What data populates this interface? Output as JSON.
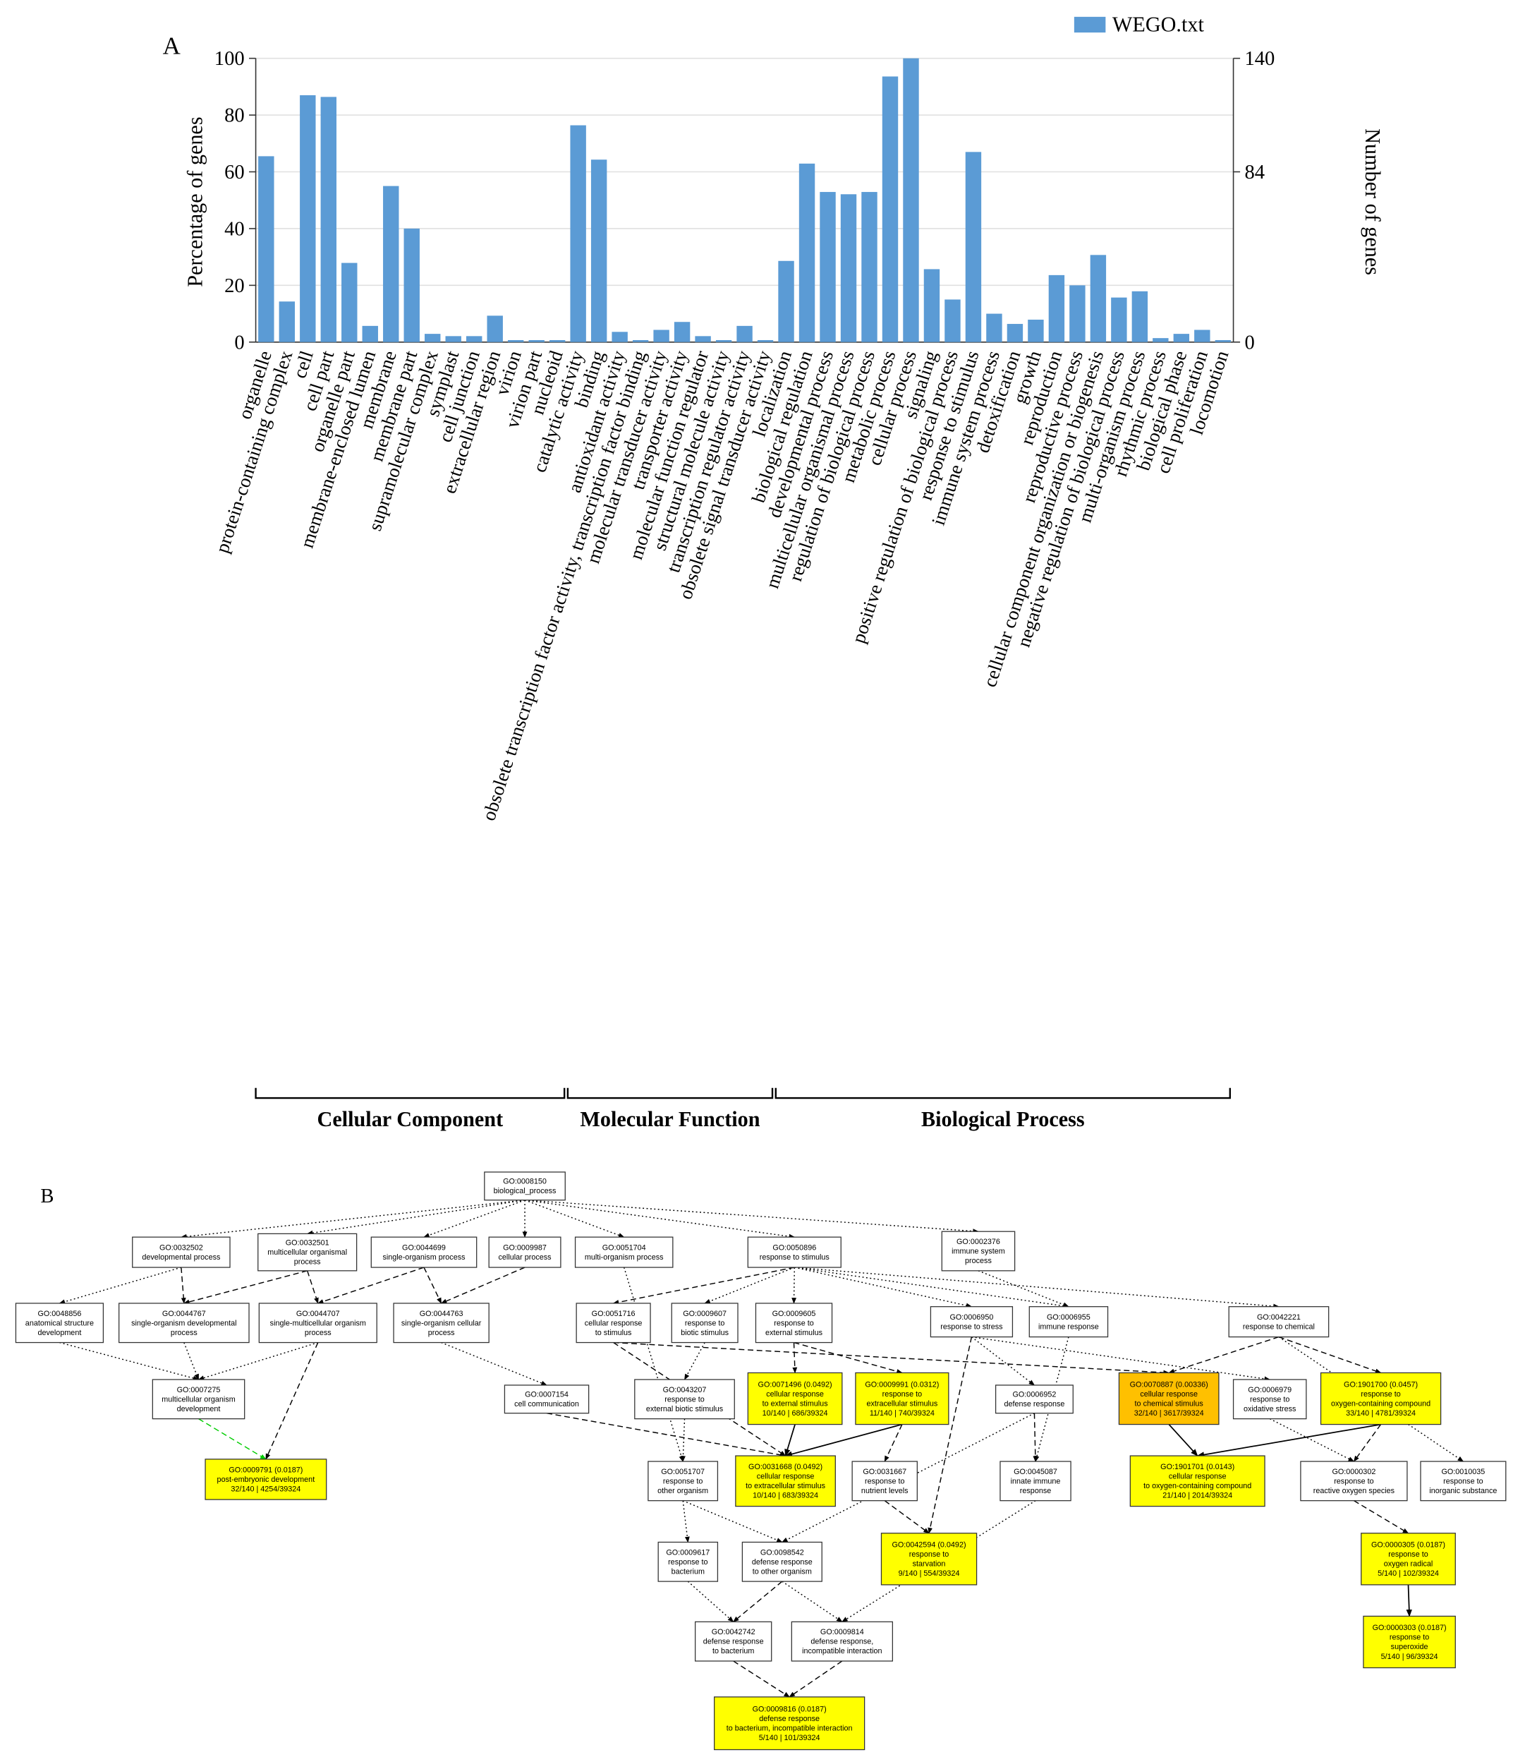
{
  "panel_a_label": "A",
  "panel_b_label": "B",
  "chart_data": {
    "type": "bar",
    "categories": [
      "organelle",
      "protein-containing complex",
      "cell",
      "cell part",
      "organelle part",
      "membrane-enclosed lumen",
      "membrane",
      "membrane part",
      "supramolecular complex",
      "symplast",
      "cell junction",
      "extracellular region",
      "virion",
      "virion part",
      "nucleoid",
      "catalytic activity",
      "binding",
      "antioxidant activity",
      "obsolete transcription factor activity, transcription factor binding",
      "molecular transducer activity",
      "transporter activity",
      "molecular function regulator",
      "structural molecule activity",
      "transcription regulator activity",
      "obsolete signal transducer activity",
      "localization",
      "biological regulation",
      "developmental process",
      "multicellular organismal process",
      "regulation of biological process",
      "metabolic process",
      "cellular process",
      "signaling",
      "positive regulation of biological process",
      "response to stimulus",
      "immune system process",
      "detoxification",
      "growth",
      "reproduction",
      "reproductive process",
      "cellular component organization or biogenesis",
      "negative regulation of biological process",
      "multi-organism process",
      "rhythmic process",
      "biological phase",
      "cell proliferation",
      "locomotion"
    ],
    "series": [
      {
        "name": "WEGO.txt",
        "color": "#5b9bd5",
        "values": [
          65.5,
          14.3,
          87,
          86.4,
          27.9,
          5.7,
          55,
          40,
          2.9,
          2.1,
          2.1,
          9.3,
          0.7,
          0.7,
          0.7,
          76.4,
          64.3,
          3.6,
          0.7,
          4.3,
          7.1,
          2.1,
          0.7,
          5.7,
          0.7,
          28.6,
          62.9,
          52.9,
          52.1,
          52.9,
          93.6,
          100,
          25.7,
          15,
          67,
          10,
          6.4,
          7.9,
          23.6,
          20,
          30.7,
          15.7,
          17.9,
          1.4,
          2.9,
          4.3,
          0.7
        ]
      }
    ],
    "ylabel": "Percentage of genes",
    "y2label": "Number of genes",
    "ylim": [
      0,
      100
    ],
    "yticks": [
      0,
      20,
      40,
      60,
      80,
      100
    ],
    "y2lim": [
      0,
      140
    ],
    "y2ticks": [
      0,
      84,
      140
    ],
    "grid": true,
    "legend": "top-right",
    "groups": [
      "Cellular Component",
      "Molecular Function",
      "Biological Process"
    ]
  },
  "diagram": {
    "nodes": [
      {
        "lines": [
          "GO:0008150",
          "biological_process"
        ],
        "color": "#ffffff"
      },
      {
        "lines": [
          "GO:0032502",
          "developmental process"
        ],
        "color": "#ffffff"
      },
      {
        "lines": [
          "GO:0032501",
          "multicellular organismal",
          "process"
        ],
        "color": "#ffffff"
      },
      {
        "lines": [
          "GO:0044699",
          "single-organism process"
        ],
        "color": "#ffffff"
      },
      {
        "lines": [
          "GO:0009987",
          "cellular process"
        ],
        "color": "#ffffff"
      },
      {
        "lines": [
          "GO:0051704",
          "multi-organism process"
        ],
        "color": "#ffffff"
      },
      {
        "lines": [
          "GO:0050896",
          "response to stimulus"
        ],
        "color": "#ffffff"
      },
      {
        "lines": [
          "GO:0002376",
          "immune system",
          "process"
        ],
        "color": "#ffffff"
      },
      {
        "lines": [
          "GO:0048856",
          "anatomical structure",
          "development"
        ],
        "color": "#ffffff"
      },
      {
        "lines": [
          "GO:0044767",
          "single-organism developmental",
          "process"
        ],
        "color": "#ffffff"
      },
      {
        "lines": [
          "GO:0044707",
          "single-multicellular organism",
          "process"
        ],
        "color": "#ffffff"
      },
      {
        "lines": [
          "GO:0044763",
          "single-organism cellular",
          "process"
        ],
        "color": "#ffffff"
      },
      {
        "lines": [
          "GO:0051716",
          "cellular response",
          "to stimulus"
        ],
        "color": "#ffffff"
      },
      {
        "lines": [
          "GO:0009607",
          "response to",
          "biotic stimulus"
        ],
        "color": "#ffffff"
      },
      {
        "lines": [
          "GO:0009605",
          "response to",
          "external stimulus"
        ],
        "color": "#ffffff"
      },
      {
        "lines": [
          "GO:0006950",
          "response to stress"
        ],
        "color": "#ffffff"
      },
      {
        "lines": [
          "GO:0006955",
          "immune response"
        ],
        "color": "#ffffff"
      },
      {
        "lines": [
          "GO:0042221",
          "response to chemical"
        ],
        "color": "#ffffff"
      },
      {
        "lines": [
          "GO:0007275",
          "multicellular organism",
          "development"
        ],
        "color": "#ffffff"
      },
      {
        "lines": [
          "GO:0007154",
          "cell communication"
        ],
        "color": "#ffffff"
      },
      {
        "lines": [
          "GO:0043207",
          "response to",
          "external biotic stimulus"
        ],
        "color": "#ffffff"
      },
      {
        "lines": [
          "GO:0071496 (0.0492)",
          "cellular response",
          "to external stimulus",
          "10/140 | 686/39324"
        ],
        "color": "#ffff00"
      },
      {
        "lines": [
          "GO:0009991 (0.0312)",
          "response to",
          "extracellular stimulus",
          "11/140 | 740/39324"
        ],
        "color": "#ffff00"
      },
      {
        "lines": [
          "GO:0006952",
          "defense response"
        ],
        "color": "#ffffff"
      },
      {
        "lines": [
          "GO:0070887 (0.00336)",
          "cellular response",
          "to chemical stimulus",
          "32/140 | 3617/39324"
        ],
        "color": "#ffc000"
      },
      {
        "lines": [
          "GO:0006979",
          "response to",
          "oxidative stress"
        ],
        "color": "#ffffff"
      },
      {
        "lines": [
          "GO:1901700 (0.0457)",
          "response to",
          "oxygen-containing compound",
          "33/140 | 4781/39324"
        ],
        "color": "#ffff00"
      },
      {
        "lines": [
          "GO:0009791 (0.0187)",
          "post-embryonic development",
          "32/140 | 4254/39324"
        ],
        "color": "#ffff00"
      },
      {
        "lines": [
          "GO:0051707",
          "response to",
          "other organism"
        ],
        "color": "#ffffff"
      },
      {
        "lines": [
          "GO:0031668 (0.0492)",
          "cellular response",
          "to extracellular stimulus",
          "10/140 | 683/39324"
        ],
        "color": "#ffff00"
      },
      {
        "lines": [
          "GO:0031667",
          "response to",
          "nutrient levels"
        ],
        "color": "#ffffff"
      },
      {
        "lines": [
          "GO:0045087",
          "innate immune",
          "response"
        ],
        "color": "#ffffff"
      },
      {
        "lines": [
          "GO:1901701 (0.0143)",
          "cellular response",
          "to oxygen-containing compound",
          "21/140 | 2014/39324"
        ],
        "color": "#ffff00"
      },
      {
        "lines": [
          "GO:0000302",
          "response to",
          "reactive oxygen species"
        ],
        "color": "#ffffff"
      },
      {
        "lines": [
          "GO:0010035",
          "response to",
          "inorganic substance"
        ],
        "color": "#ffffff"
      },
      {
        "lines": [
          "GO:0009617",
          "response to",
          "bacterium"
        ],
        "color": "#ffffff"
      },
      {
        "lines": [
          "GO:0098542",
          "defense response",
          "to other organism"
        ],
        "color": "#ffffff"
      },
      {
        "lines": [
          "GO:0042594 (0.0492)",
          "response to",
          "starvation",
          "9/140 | 554/39324"
        ],
        "color": "#ffff00"
      },
      {
        "lines": [
          "GO:0000305 (0.0187)",
          "response to",
          "oxygen radical",
          "5/140 | 102/39324"
        ],
        "color": "#ffff00"
      },
      {
        "lines": [
          "GO:0042742",
          "defense response",
          "to bacterium"
        ],
        "color": "#ffffff"
      },
      {
        "lines": [
          "GO:0009814",
          "defense response,",
          "incompatible interaction"
        ],
        "color": "#ffffff"
      },
      {
        "lines": [
          "GO:0000303 (0.0187)",
          "response to",
          "superoxide",
          "5/140 | 96/39324"
        ],
        "color": "#ffff00"
      },
      {
        "lines": [
          "GO:0009816 (0.0187)",
          "defense response",
          "to bacterium, incompatible interaction",
          "5/140 | 101/39324"
        ],
        "color": "#ffff00"
      }
    ]
  }
}
